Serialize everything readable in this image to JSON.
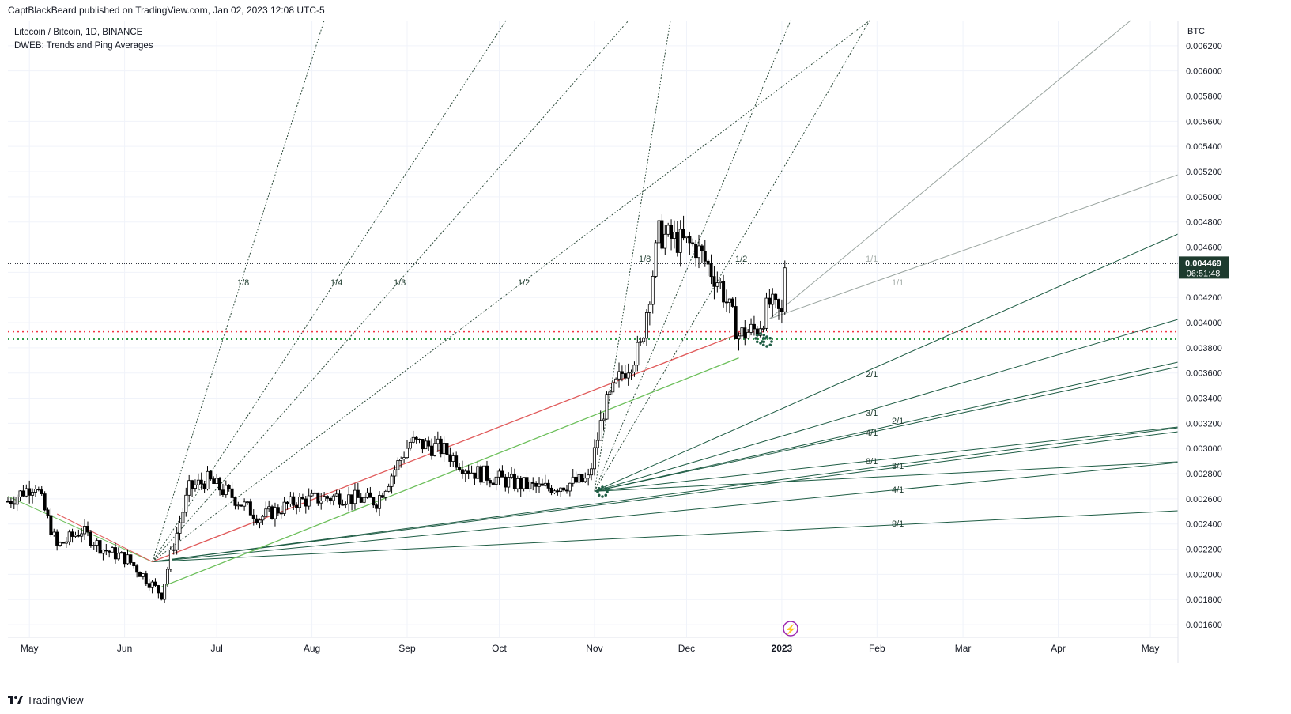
{
  "header": {
    "publisher": "CaptBlackBeard published on TradingView.com, Jan 02, 2023 12:08 UTC-5"
  },
  "legend": {
    "symbol": "Litecoin / Bitcoin, 1D, BINANCE",
    "indicator": "DWEB: Trends and Ping Averages"
  },
  "price_axis": {
    "currency": "BTC",
    "last_price": "0.004469",
    "countdown": "06:51:48"
  },
  "footer": {
    "brand": "TradingView"
  },
  "colors": {
    "fan": "#1e5c44",
    "fan_light": "#9aa5a0",
    "red_line": "#e05a5a",
    "green_line": "#6cbf5a",
    "red_level": "#f23645",
    "green_level": "#2e9e4a",
    "bull_candle": "#ffffff",
    "bear_candle": "#000000",
    "accent": "#9c27b0"
  },
  "chart_data": {
    "type": "candlestick",
    "title": "Litecoin / Bitcoin, 1D, BINANCE",
    "y_unit": "BTC",
    "ylim": [
      0.0015,
      0.0064
    ],
    "y_ticks": [
      "0.001600",
      "0.001800",
      "0.002000",
      "0.002200",
      "0.002400",
      "0.002600",
      "0.002800",
      "0.003000",
      "0.003200",
      "0.003400",
      "0.003600",
      "0.003800",
      "0.004000",
      "0.004200",
      "0.004400",
      "0.004600",
      "0.004800",
      "0.005000",
      "0.005200",
      "0.005400",
      "0.005600",
      "0.005800",
      "0.006000",
      "0.006200"
    ],
    "x_ticks": [
      "May",
      "Jun",
      "Jul",
      "Aug",
      "Sep",
      "Oct",
      "Nov",
      "Dec",
      "2023",
      "Feb",
      "Mar",
      "Apr",
      "May"
    ],
    "x_range": [
      "2022-04-24",
      "2023-05-10"
    ],
    "grid": true,
    "candles_approx": [
      {
        "date": "2022-04-24",
        "close": 0.00258
      },
      {
        "date": "2022-05-03",
        "close": 0.00272
      },
      {
        "date": "2022-05-10",
        "close": 0.00222
      },
      {
        "date": "2022-05-18",
        "close": 0.00235
      },
      {
        "date": "2022-05-25",
        "close": 0.0022
      },
      {
        "date": "2022-06-02",
        "close": 0.00212
      },
      {
        "date": "2022-06-13",
        "close": 0.00184
      },
      {
        "date": "2022-06-16",
        "close": 0.00215
      },
      {
        "date": "2022-06-22",
        "close": 0.00268
      },
      {
        "date": "2022-06-28",
        "close": 0.00275
      },
      {
        "date": "2022-07-06",
        "close": 0.00262
      },
      {
        "date": "2022-07-15",
        "close": 0.00245
      },
      {
        "date": "2022-07-27",
        "close": 0.00258
      },
      {
        "date": "2022-08-10",
        "close": 0.00262
      },
      {
        "date": "2022-08-22",
        "close": 0.00258
      },
      {
        "date": "2022-09-02",
        "close": 0.00305
      },
      {
        "date": "2022-09-12",
        "close": 0.003
      },
      {
        "date": "2022-09-22",
        "close": 0.00282
      },
      {
        "date": "2022-10-05",
        "close": 0.00273
      },
      {
        "date": "2022-10-15",
        "close": 0.00268
      },
      {
        "date": "2022-10-30",
        "close": 0.00275
      },
      {
        "date": "2022-11-04",
        "close": 0.0033
      },
      {
        "date": "2022-11-10",
        "close": 0.0036
      },
      {
        "date": "2022-11-16",
        "close": 0.0038
      },
      {
        "date": "2022-11-22",
        "close": 0.0047
      },
      {
        "date": "2022-11-28",
        "close": 0.00465
      },
      {
        "date": "2022-12-04",
        "close": 0.0046
      },
      {
        "date": "2022-12-12",
        "close": 0.0043
      },
      {
        "date": "2022-12-18",
        "close": 0.0039
      },
      {
        "date": "2022-12-24",
        "close": 0.00395
      },
      {
        "date": "2022-12-28",
        "close": 0.00415
      },
      {
        "date": "2023-01-01",
        "close": 0.00405
      },
      {
        "date": "2023-01-02",
        "close": 0.004469
      }
    ],
    "horizontal_levels": [
      {
        "value": 0.004469,
        "style": "dotted",
        "color": "#131722"
      },
      {
        "value": 0.00393,
        "style": "dotted",
        "color": "#f23645"
      },
      {
        "value": 0.00387,
        "style": "dotted",
        "color": "#2e9e4a"
      }
    ],
    "fan_labels_upper": [
      "1/8",
      "1/4",
      "1/3",
      "1/2"
    ],
    "fan_labels_nov": [
      "1/8",
      "1/2"
    ],
    "fan_labels_right": [
      "1/1",
      "1/1",
      "2/1",
      "3/1",
      "2/1",
      "4/1",
      "8/1",
      "3/1",
      "4/1",
      "8/1"
    ]
  }
}
